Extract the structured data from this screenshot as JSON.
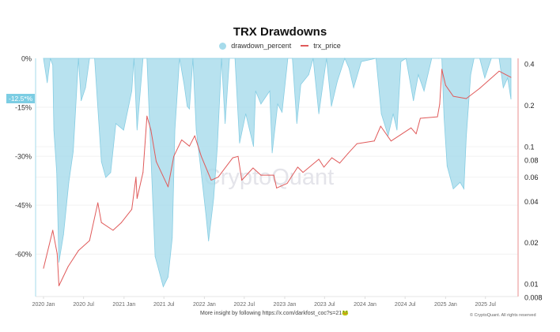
{
  "chart_data": {
    "type": "area+line",
    "title": "TRX Drawdowns",
    "legend": {
      "placement": "top-center",
      "entries": [
        "drawdown_percent",
        "trx_price"
      ]
    },
    "colors": {
      "drawdown_percent": "#a6dbeb",
      "drawdown_stroke": "#86cde3",
      "trx_price": "#e05a5a",
      "left_axis": "#a6dbeb",
      "right_axis": "#f0b4b4"
    },
    "x_ticks": [
      "2020 Jan",
      "2020 Jul",
      "2021 Jan",
      "2021 Jul",
      "2022 Jan",
      "2022 Jul",
      "2023 Jan",
      "2023 Jul",
      "2024 Jan",
      "2024 Jul",
      "2025 Jan",
      "2025 Jul"
    ],
    "x_tick_dates": [
      "2020-01-01",
      "2020-07-01",
      "2021-01-01",
      "2021-07-01",
      "2022-01-01",
      "2022-07-01",
      "2023-01-01",
      "2023-07-01",
      "2024-01-01",
      "2024-07-01",
      "2025-01-01",
      "2025-07-01"
    ],
    "y_left": {
      "ticks": [
        "0%",
        "-15%",
        "-30%",
        "-45%",
        "-60%"
      ],
      "tick_values": [
        0,
        -15,
        -30,
        -45,
        -60
      ],
      "range": [
        -73,
        0
      ]
    },
    "y_right": {
      "scale": "log",
      "ticks": [
        "0.4",
        "0.2",
        "0.1",
        "0.08",
        "0.06",
        "0.04",
        "0.02",
        "0.01",
        "0.008"
      ],
      "tick_values": [
        0.4,
        0.2,
        0.1,
        0.08,
        0.06,
        0.04,
        0.02,
        0.01,
        0.008
      ],
      "range": [
        0.0081,
        0.44
      ]
    },
    "grid": true,
    "current_drawdown_label": "-12.5*%",
    "watermark": "CryptoQuant",
    "series": [
      {
        "name": "drawdown_percent",
        "type": "area",
        "axis": "left",
        "points": [
          [
            "2020-01-01",
            0
          ],
          [
            "2020-01-18",
            -7.5
          ],
          [
            "2020-02-01",
            0
          ],
          [
            "2020-02-12",
            -2
          ],
          [
            "2020-02-17",
            -22
          ],
          [
            "2020-03-01",
            -35
          ],
          [
            "2020-03-11",
            -62.5
          ],
          [
            "2020-04-01",
            -54
          ],
          [
            "2020-04-25",
            -38
          ],
          [
            "2020-05-15",
            -28.5
          ],
          [
            "2020-06-08",
            0
          ],
          [
            "2020-06-20",
            -13
          ],
          [
            "2020-07-10",
            -9
          ],
          [
            "2020-07-28",
            0
          ],
          [
            "2020-08-20",
            0
          ],
          [
            "2020-09-20",
            -31.7
          ],
          [
            "2020-10-10",
            -36.5
          ],
          [
            "2020-11-01",
            -35
          ],
          [
            "2020-11-25",
            -20
          ],
          [
            "2020-12-30",
            -22
          ],
          [
            "2021-02-05",
            -10
          ],
          [
            "2021-02-15",
            0
          ],
          [
            "2021-03-01",
            -22
          ],
          [
            "2021-03-28",
            0
          ],
          [
            "2021-04-15",
            0
          ],
          [
            "2021-05-03",
            -30
          ],
          [
            "2021-05-22",
            -60.7
          ],
          [
            "2021-06-28",
            -70
          ],
          [
            "2021-07-20",
            -67
          ],
          [
            "2021-08-08",
            -55
          ],
          [
            "2021-08-20",
            -22
          ],
          [
            "2021-09-10",
            0
          ],
          [
            "2021-10-01",
            -8
          ],
          [
            "2021-10-15",
            -14.7
          ],
          [
            "2021-10-25",
            -15.5
          ],
          [
            "2021-11-10",
            0
          ],
          [
            "2021-11-25",
            -22
          ],
          [
            "2021-12-20",
            -36.5
          ],
          [
            "2022-01-08",
            -48
          ],
          [
            "2022-01-20",
            -56
          ],
          [
            "2022-02-12",
            -43
          ],
          [
            "2022-03-01",
            -27
          ],
          [
            "2022-03-20",
            0
          ],
          [
            "2022-04-05",
            -20
          ],
          [
            "2022-04-25",
            0
          ],
          [
            "2022-05-20",
            0
          ],
          [
            "2022-06-10",
            -26
          ],
          [
            "2022-07-08",
            -17
          ],
          [
            "2022-08-12",
            -27
          ],
          [
            "2022-08-22",
            -10
          ],
          [
            "2022-09-15",
            -14
          ],
          [
            "2022-10-25",
            -10
          ],
          [
            "2022-11-05",
            -29
          ],
          [
            "2022-11-30",
            -14
          ],
          [
            "2022-12-20",
            -16.5
          ],
          [
            "2023-01-15",
            0
          ],
          [
            "2023-02-05",
            0
          ],
          [
            "2023-02-25",
            -20
          ],
          [
            "2023-03-15",
            -8
          ],
          [
            "2023-04-20",
            -5
          ],
          [
            "2023-05-10",
            0
          ],
          [
            "2023-06-05",
            -17
          ],
          [
            "2023-07-10",
            0
          ],
          [
            "2023-08-01",
            -14.7
          ],
          [
            "2023-08-28",
            -7
          ],
          [
            "2023-10-01",
            0
          ],
          [
            "2023-10-20",
            -3
          ],
          [
            "2023-11-10",
            -9
          ],
          [
            "2023-12-15",
            -1
          ],
          [
            "2024-02-20",
            0
          ],
          [
            "2024-03-15",
            -17
          ],
          [
            "2024-04-15",
            -23.7
          ],
          [
            "2024-05-08",
            -17
          ],
          [
            "2024-05-25",
            -22
          ],
          [
            "2024-06-12",
            -1
          ],
          [
            "2024-07-05",
            0
          ],
          [
            "2024-08-08",
            -13
          ],
          [
            "2024-08-30",
            -5
          ],
          [
            "2024-09-25",
            -10
          ],
          [
            "2024-10-30",
            0
          ],
          [
            "2024-12-01",
            0
          ],
          [
            "2024-12-15",
            0
          ],
          [
            "2024-12-25",
            -18
          ],
          [
            "2025-01-08",
            -33
          ],
          [
            "2025-02-05",
            -40
          ],
          [
            "2025-03-08",
            -38
          ],
          [
            "2025-03-25",
            -40
          ],
          [
            "2025-04-05",
            -24
          ],
          [
            "2025-04-25",
            -5
          ],
          [
            "2025-05-10",
            0
          ],
          [
            "2025-06-05",
            0
          ],
          [
            "2025-06-28",
            -6
          ],
          [
            "2025-07-28",
            0
          ],
          [
            "2025-09-01",
            0
          ],
          [
            "2025-09-20",
            -9
          ],
          [
            "2025-10-10",
            -6
          ],
          [
            "2025-10-25",
            -12.5
          ]
        ]
      },
      {
        "name": "trx_price",
        "type": "line",
        "axis": "right",
        "points": [
          [
            "2020-01-01",
            0.013
          ],
          [
            "2020-02-12",
            0.0246
          ],
          [
            "2020-03-03",
            0.0166
          ],
          [
            "2020-03-11",
            0.0097
          ],
          [
            "2020-04-22",
            0.0134
          ],
          [
            "2020-06-08",
            0.0175
          ],
          [
            "2020-07-28",
            0.0207
          ],
          [
            "2020-09-04",
            0.039
          ],
          [
            "2020-09-20",
            0.028
          ],
          [
            "2020-11-12",
            0.0246
          ],
          [
            "2020-12-20",
            0.028
          ],
          [
            "2021-02-05",
            0.035
          ],
          [
            "2021-02-24",
            0.06
          ],
          [
            "2021-03-01",
            0.042
          ],
          [
            "2021-03-28",
            0.065
          ],
          [
            "2021-04-15",
            0.167
          ],
          [
            "2021-05-03",
            0.132
          ],
          [
            "2021-05-27",
            0.078
          ],
          [
            "2021-07-20",
            0.051
          ],
          [
            "2021-08-15",
            0.085
          ],
          [
            "2021-09-20",
            0.112
          ],
          [
            "2021-10-25",
            0.101
          ],
          [
            "2021-11-18",
            0.12
          ],
          [
            "2021-12-18",
            0.085
          ],
          [
            "2022-02-01",
            0.057
          ],
          [
            "2022-03-05",
            0.06
          ],
          [
            "2022-05-10",
            0.083
          ],
          [
            "2022-06-03",
            0.085
          ],
          [
            "2022-06-20",
            0.057
          ],
          [
            "2022-08-10",
            0.07
          ],
          [
            "2022-09-15",
            0.062
          ],
          [
            "2022-11-12",
            0.062
          ],
          [
            "2022-11-25",
            0.05
          ],
          [
            "2023-01-12",
            0.054
          ],
          [
            "2023-03-01",
            0.071
          ],
          [
            "2023-03-25",
            0.065
          ],
          [
            "2023-06-05",
            0.081
          ],
          [
            "2023-06-28",
            0.071
          ],
          [
            "2023-08-03",
            0.083
          ],
          [
            "2023-09-08",
            0.076
          ],
          [
            "2023-10-15",
            0.089
          ],
          [
            "2023-11-25",
            0.105
          ],
          [
            "2024-02-12",
            0.11
          ],
          [
            "2024-03-12",
            0.141
          ],
          [
            "2024-04-28",
            0.11
          ],
          [
            "2024-07-28",
            0.137
          ],
          [
            "2024-08-20",
            0.124
          ],
          [
            "2024-09-08",
            0.161
          ],
          [
            "2024-11-25",
            0.165
          ],
          [
            "2024-12-05",
            0.204
          ],
          [
            "2024-12-15",
            0.366
          ],
          [
            "2025-01-01",
            0.28
          ],
          [
            "2025-02-05",
            0.233
          ],
          [
            "2025-04-05",
            0.224
          ],
          [
            "2025-06-05",
            0.266
          ],
          [
            "2025-09-01",
            0.355
          ],
          [
            "2025-10-25",
            0.32
          ]
        ]
      }
    ]
  },
  "footer": {
    "text": "More insight by following https://x.com/darkfost_coc?s=21🐸",
    "copyright": "© CryptoQuant. All rights reserved"
  }
}
